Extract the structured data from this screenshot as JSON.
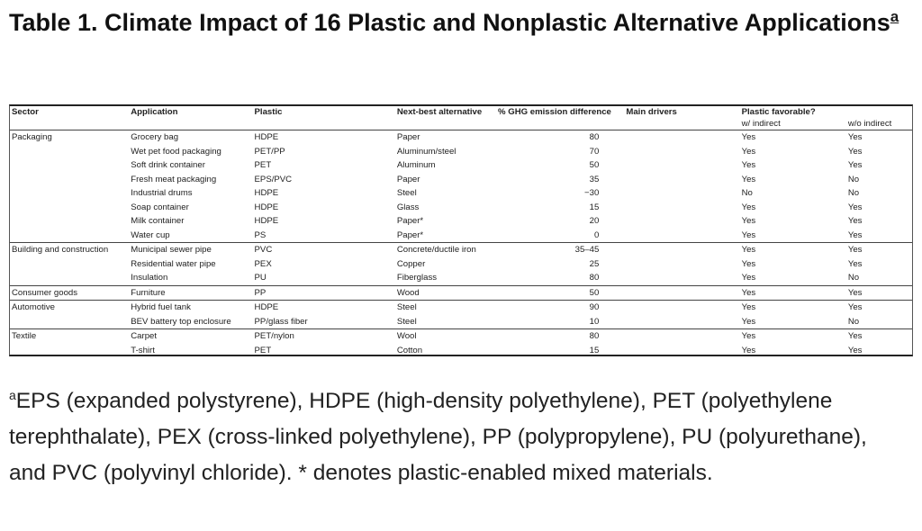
{
  "title": {
    "text": "Table 1. Climate Impact of 16 Plastic and Nonplastic Alternative Applications",
    "footnote_marker": "a"
  },
  "table": {
    "headers": [
      "Sector",
      "Application",
      "Plastic",
      "Next-best alternative",
      "% GHG emission difference",
      "Main drivers",
      "Plastic favorable?",
      ""
    ],
    "subheaders": [
      "",
      "",
      "",
      "",
      "",
      "",
      "w/ indirect",
      "w/o indirect"
    ],
    "rows": [
      {
        "sector": "Packaging",
        "application": "Grocery bag",
        "plastic": "HDPE",
        "alternative": "Paper",
        "ghg": "80",
        "drivers": "",
        "with_indirect": "Yes",
        "without_indirect": "Yes",
        "sector_start": true
      },
      {
        "sector": "",
        "application": "Wet pet food packaging",
        "plastic": "PET/PP",
        "alternative": "Aluminum/steel",
        "ghg": "70",
        "drivers": "",
        "with_indirect": "Yes",
        "without_indirect": "Yes",
        "sector_start": false
      },
      {
        "sector": "",
        "application": "Soft drink container",
        "plastic": "PET",
        "alternative": "Aluminum",
        "ghg": "50",
        "drivers": "",
        "with_indirect": "Yes",
        "without_indirect": "Yes",
        "sector_start": false
      },
      {
        "sector": "",
        "application": "Fresh meat packaging",
        "plastic": "EPS/PVC",
        "alternative": "Paper",
        "ghg": "35",
        "drivers": "",
        "with_indirect": "Yes",
        "without_indirect": "No",
        "sector_start": false
      },
      {
        "sector": "",
        "application": "Industrial drums",
        "plastic": "HDPE",
        "alternative": "Steel",
        "ghg": "−30",
        "drivers": "",
        "with_indirect": "No",
        "without_indirect": "No",
        "sector_start": false
      },
      {
        "sector": "",
        "application": "Soap container",
        "plastic": "HDPE",
        "alternative": "Glass",
        "ghg": "15",
        "drivers": "",
        "with_indirect": "Yes",
        "without_indirect": "Yes",
        "sector_start": false
      },
      {
        "sector": "",
        "application": "Milk container",
        "plastic": "HDPE",
        "alternative": "Paper*",
        "ghg": "20",
        "drivers": "",
        "with_indirect": "Yes",
        "without_indirect": "Yes",
        "sector_start": false
      },
      {
        "sector": "",
        "application": "Water cup",
        "plastic": "PS",
        "alternative": "Paper*",
        "ghg": "0",
        "drivers": "",
        "with_indirect": "Yes",
        "without_indirect": "Yes",
        "sector_start": false
      },
      {
        "sector": "Building and construction",
        "application": "Municipal sewer pipe",
        "plastic": "PVC",
        "alternative": "Concrete/ductile iron",
        "ghg": "35–45",
        "drivers": "",
        "with_indirect": "Yes",
        "without_indirect": "Yes",
        "sector_start": true
      },
      {
        "sector": "",
        "application": "Residential water pipe",
        "plastic": "PEX",
        "alternative": "Copper",
        "ghg": "25",
        "drivers": "",
        "with_indirect": "Yes",
        "without_indirect": "Yes",
        "sector_start": false
      },
      {
        "sector": "",
        "application": "Insulation",
        "plastic": "PU",
        "alternative": "Fiberglass",
        "ghg": "80",
        "drivers": "",
        "with_indirect": "Yes",
        "without_indirect": "No",
        "sector_start": false
      },
      {
        "sector": "Consumer goods",
        "application": "Furniture",
        "plastic": "PP",
        "alternative": "Wood",
        "ghg": "50",
        "drivers": "",
        "with_indirect": "Yes",
        "without_indirect": "Yes",
        "sector_start": true
      },
      {
        "sector": "Automotive",
        "application": "Hybrid fuel tank",
        "plastic": "HDPE",
        "alternative": "Steel",
        "ghg": "90",
        "drivers": "",
        "with_indirect": "Yes",
        "without_indirect": "Yes",
        "sector_start": true
      },
      {
        "sector": "",
        "application": "BEV battery top enclosure",
        "plastic": "PP/glass fiber",
        "alternative": "Steel",
        "ghg": "10",
        "drivers": "",
        "with_indirect": "Yes",
        "without_indirect": "No",
        "sector_start": false
      },
      {
        "sector": "Textile",
        "application": "Carpet",
        "plastic": "PET/nylon",
        "alternative": "Wool",
        "ghg": "80",
        "drivers": "",
        "with_indirect": "Yes",
        "without_indirect": "Yes",
        "sector_start": true
      },
      {
        "sector": "",
        "application": "T-shirt",
        "plastic": "PET",
        "alternative": "Cotton",
        "ghg": "15",
        "drivers": "",
        "with_indirect": "Yes",
        "without_indirect": "Yes",
        "sector_start": false
      }
    ]
  },
  "footnote": {
    "marker": "a",
    "text": "EPS (expanded polystyrene), HDPE (high-density polyethylene), PET (polyethylene terephthalate), PEX (cross-linked polyethylene), PP (polypropylene), PU (polyurethane), and PVC (polyvinyl chloride). * denotes plastic-enabled mixed materials."
  }
}
